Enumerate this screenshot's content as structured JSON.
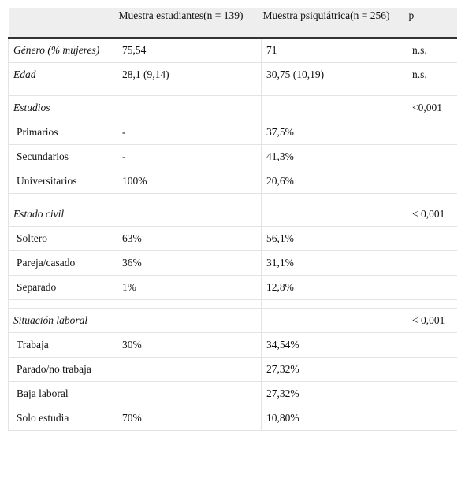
{
  "table": {
    "header": [
      null,
      "Muestra estudiantes(n = 139)",
      "Muestra psiquiátrica(n = 256)",
      "p"
    ],
    "rows": [
      [
        "Género (% mujeres)",
        "75,54",
        "71",
        "n.s."
      ],
      [
        "Edad",
        "28,1 (9,14)",
        "30,75 (10,19)",
        "n.s."
      ],
      [
        "Estudios",
        null,
        null,
        "<0,001"
      ],
      [
        "Primarios",
        "-",
        "37,5%",
        null
      ],
      [
        "Secundarios",
        "-",
        "41,3%",
        null
      ],
      [
        "Universitarios",
        "100%",
        "20,6%",
        null
      ],
      [
        "Estado civil",
        null,
        null,
        "< 0,001"
      ],
      [
        "Soltero",
        "63%",
        "56,1%",
        null
      ],
      [
        "Pareja/casado",
        "36%",
        "31,1%",
        null
      ],
      [
        "Separado",
        "1%",
        "12,8%",
        null
      ],
      [
        "Situación laboral",
        null,
        null,
        "< 0,001"
      ],
      [
        "Trabaja",
        "30%",
        "34,54%",
        null
      ],
      [
        "Parado/no trabaja",
        null,
        "27,32%",
        null
      ],
      [
        "Baja laboral",
        null,
        "27,32%",
        null
      ],
      [
        "Solo estudia",
        "70%",
        "10,80%",
        null
      ]
    ]
  }
}
